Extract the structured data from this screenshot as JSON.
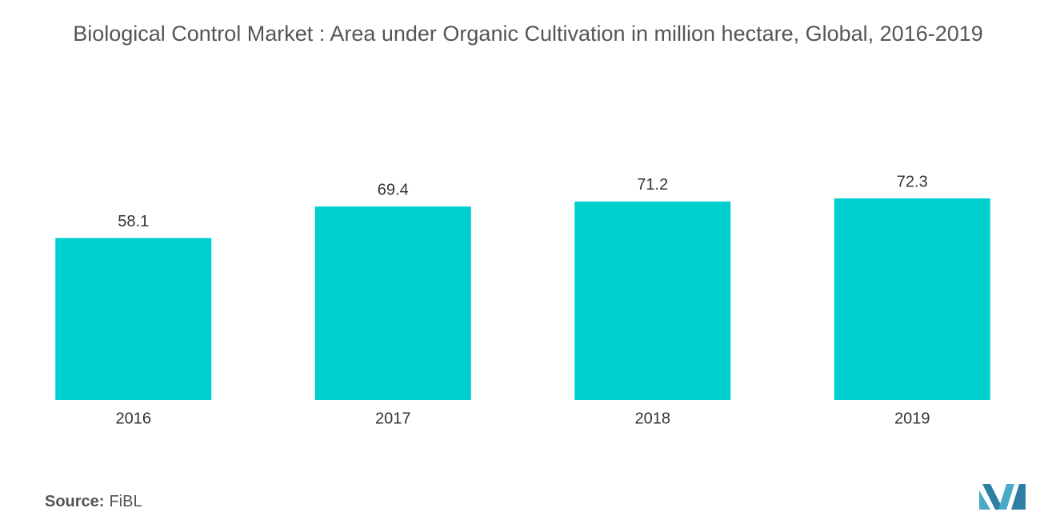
{
  "chart_data": {
    "type": "bar",
    "title": "Biological Control Market : Area under Organic Cultivation in million hectare, Global, 2016-2019",
    "categories": [
      "2016",
      "2017",
      "2018",
      "2019"
    ],
    "values": [
      58.1,
      69.4,
      71.2,
      72.3
    ],
    "color": "#00cfd0",
    "source": {
      "label": "Source:",
      "text": "FiBL"
    }
  }
}
